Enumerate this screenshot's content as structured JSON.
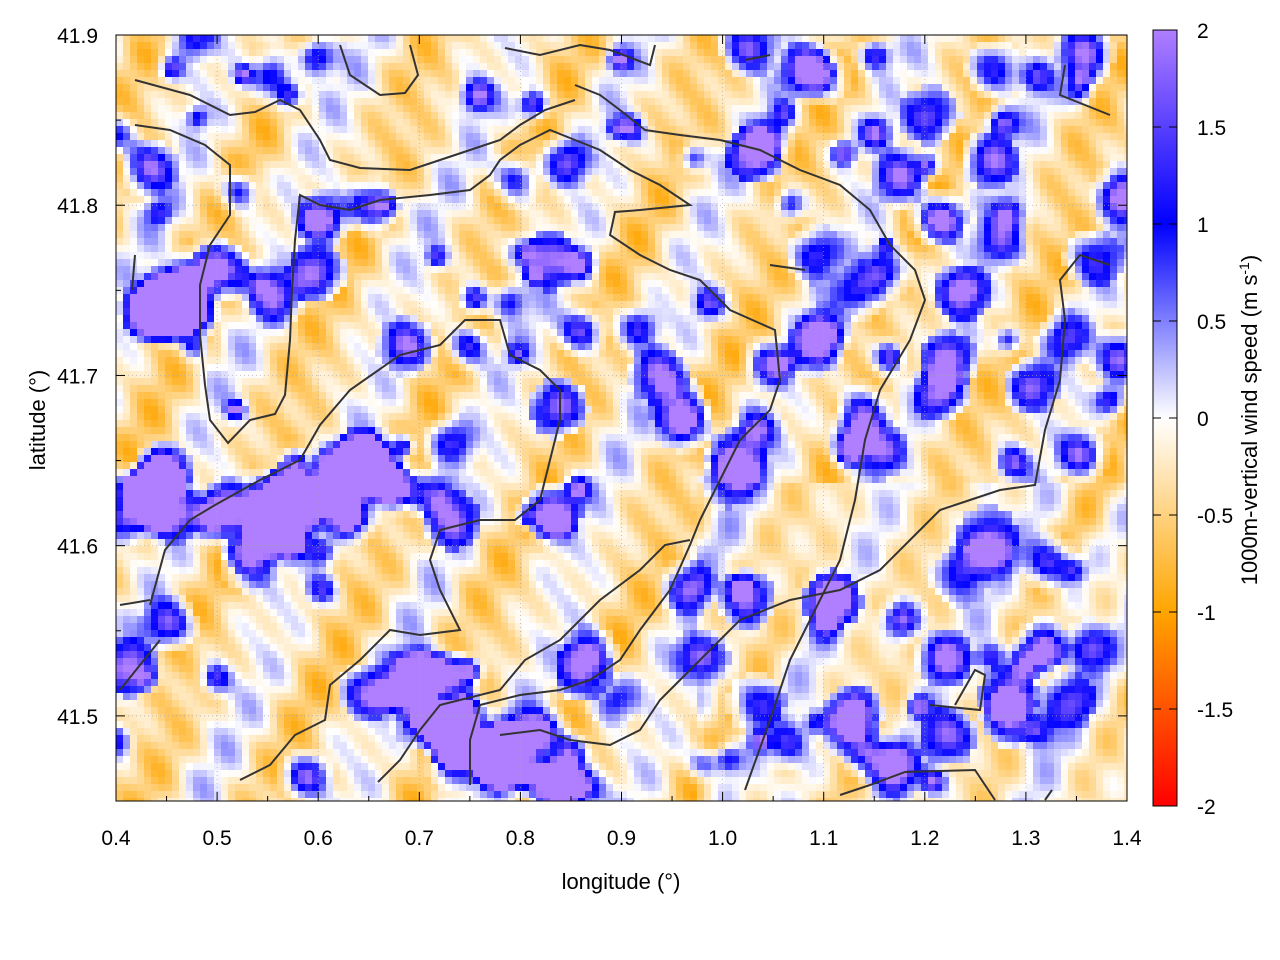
{
  "chart_data": {
    "type": "heatmap",
    "title": "",
    "xlabel": "longitude (°)",
    "ylabel": "latitude (°)",
    "xlim": [
      0.4,
      1.4
    ],
    "ylim": [
      41.45,
      41.9
    ],
    "x_ticks": [
      "0.4",
      "0.5",
      "0.6",
      "0.7",
      "0.8",
      "0.9",
      "1.0",
      "1.1",
      "1.2",
      "1.3",
      "1.4"
    ],
    "y_ticks": [
      "41.5",
      "41.6",
      "41.7",
      "41.8",
      "41.9"
    ],
    "grid": true,
    "colorbar": {
      "label_main": "1000m-vertical wind speed (m s",
      "label_sup": "-1",
      "label_end": ")",
      "range": [
        -2,
        2
      ],
      "ticks": [
        "2",
        "1.5",
        "1",
        "0.5",
        "0",
        "-0.5",
        "-1",
        "-1.5",
        "-2"
      ],
      "colors": {
        "2": "#b07fff",
        "1": "#0000ff",
        "0": "#ffffff",
        "-1": "#ffa500",
        "-2": "#ff0000"
      }
    },
    "field_note": "Fine-scale alternating updraft (blue/violet) and downdraft (orange) cells; strongest updrafts near lon 0.6–0.85, lat 41.45–41.65; black contour lines show topography."
  }
}
